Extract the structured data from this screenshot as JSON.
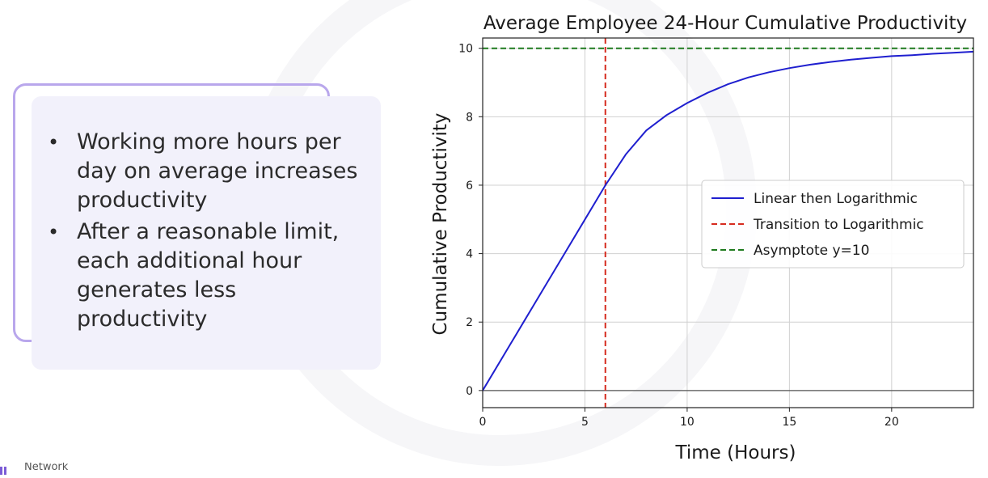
{
  "slide": {
    "bullets": [
      "Working more hours per day on average increases productivity",
      "After a reasonable limit, each additional hour generates less productivity"
    ],
    "footer_text": "Network"
  },
  "chart_data": {
    "type": "line",
    "title": "Average Employee 24-Hour Cumulative Productivity",
    "xlabel": "Time (Hours)",
    "ylabel": "Cumulative Productivity",
    "xlim": [
      0,
      24
    ],
    "ylim": [
      -0.5,
      10.3
    ],
    "xticks": [
      0,
      5,
      10,
      15,
      20
    ],
    "yticks": [
      0,
      2,
      4,
      6,
      8,
      10
    ],
    "grid": true,
    "legend_position": "center-right",
    "series": [
      {
        "name": "Linear then Logarithmic",
        "color": "#1f1fcf",
        "style": "solid",
        "x": [
          0,
          1,
          2,
          3,
          4,
          5,
          6,
          7,
          8,
          9,
          10,
          11,
          12,
          13,
          14,
          15,
          16,
          17,
          18,
          19,
          20,
          21,
          22,
          23,
          24
        ],
        "y": [
          0,
          1,
          2,
          3,
          4,
          5,
          6,
          6.9,
          7.6,
          8.05,
          8.4,
          8.7,
          8.95,
          9.15,
          9.3,
          9.42,
          9.52,
          9.6,
          9.67,
          9.72,
          9.77,
          9.8,
          9.84,
          9.87,
          9.9
        ]
      },
      {
        "name": "Transition to Logarithmic",
        "color": "#d62b1f",
        "style": "dashed",
        "orientation": "vertical",
        "x_value": 6
      },
      {
        "name": "Asymptote y=10",
        "color": "#1e7a1e",
        "style": "dashed",
        "orientation": "horizontal",
        "y_value": 10
      }
    ]
  }
}
